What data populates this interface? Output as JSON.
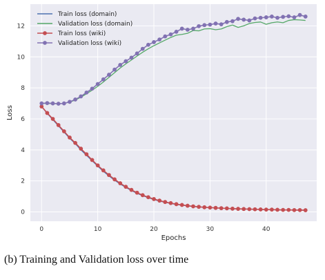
{
  "caption": "(b) Training and Validation loss over time",
  "chart_data": {
    "type": "line",
    "xlabel": "Epochs",
    "ylabel": "Loss",
    "xlim": [
      -2,
      49
    ],
    "ylim": [
      -0.6,
      13.4
    ],
    "xticks": [
      0,
      10,
      20,
      30,
      40
    ],
    "yticks": [
      0,
      2,
      4,
      6,
      8,
      10,
      12
    ],
    "grid": true,
    "background": "#eaeaf2",
    "legend_position": "top-left",
    "x": [
      0,
      1,
      2,
      3,
      4,
      5,
      6,
      7,
      8,
      9,
      10,
      11,
      12,
      13,
      14,
      15,
      16,
      17,
      18,
      19,
      20,
      21,
      22,
      23,
      24,
      25,
      26,
      27,
      28,
      29,
      30,
      31,
      32,
      33,
      34,
      35,
      36,
      37,
      38,
      39,
      40,
      41,
      42,
      43,
      44,
      45,
      46,
      47
    ],
    "series": [
      {
        "name": "Train loss (domain)",
        "color": "#4c72b0",
        "marker": false,
        "values": [
          6.8,
          6.35,
          5.95,
          5.55,
          5.15,
          4.75,
          4.4,
          4.0,
          3.65,
          3.3,
          2.95,
          2.62,
          2.32,
          2.05,
          1.8,
          1.58,
          1.38,
          1.2,
          1.05,
          0.92,
          0.8,
          0.7,
          0.62,
          0.55,
          0.48,
          0.43,
          0.39,
          0.35,
          0.32,
          0.3,
          0.28,
          0.26,
          0.24,
          0.22,
          0.21,
          0.2,
          0.19,
          0.18,
          0.17,
          0.16,
          0.15,
          0.14,
          0.13,
          0.13,
          0.12,
          0.12,
          0.11,
          0.11
        ]
      },
      {
        "name": "Validation loss (domain)",
        "color": "#55a868",
        "marker": false,
        "values": [
          7.0,
          7.0,
          6.98,
          6.98,
          7.0,
          7.08,
          7.22,
          7.4,
          7.62,
          7.85,
          8.1,
          8.38,
          8.68,
          8.98,
          9.28,
          9.55,
          9.8,
          10.05,
          10.3,
          10.52,
          10.72,
          10.9,
          11.08,
          11.25,
          11.4,
          11.45,
          11.52,
          11.7,
          11.68,
          11.8,
          11.82,
          11.75,
          11.8,
          11.95,
          12.05,
          11.9,
          12.0,
          12.15,
          12.22,
          12.25,
          12.1,
          12.2,
          12.25,
          12.2,
          12.35,
          12.4,
          12.38,
          12.35
        ]
      },
      {
        "name": "Train loss (wiki)",
        "color": "#c44e52",
        "marker": true,
        "values": [
          6.8,
          6.38,
          6.0,
          5.6,
          5.2,
          4.8,
          4.45,
          4.08,
          3.72,
          3.35,
          3.0,
          2.68,
          2.38,
          2.1,
          1.85,
          1.62,
          1.42,
          1.24,
          1.08,
          0.95,
          0.83,
          0.73,
          0.64,
          0.57,
          0.5,
          0.45,
          0.4,
          0.36,
          0.33,
          0.3,
          0.28,
          0.26,
          0.24,
          0.23,
          0.21,
          0.2,
          0.19,
          0.18,
          0.17,
          0.16,
          0.15,
          0.15,
          0.14,
          0.13,
          0.13,
          0.12,
          0.12,
          0.11
        ]
      },
      {
        "name": "Validation loss (wiki)",
        "color": "#8172b2",
        "marker": true,
        "values": [
          7.0,
          7.02,
          7.0,
          6.98,
          7.0,
          7.1,
          7.25,
          7.45,
          7.7,
          7.95,
          8.25,
          8.55,
          8.85,
          9.18,
          9.48,
          9.72,
          9.95,
          10.22,
          10.52,
          10.78,
          10.95,
          11.12,
          11.32,
          11.45,
          11.62,
          11.82,
          11.75,
          11.82,
          11.98,
          12.05,
          12.08,
          12.15,
          12.1,
          12.25,
          12.3,
          12.45,
          12.4,
          12.35,
          12.48,
          12.52,
          12.55,
          12.6,
          12.52,
          12.58,
          12.62,
          12.55,
          12.7,
          12.6
        ]
      }
    ]
  }
}
